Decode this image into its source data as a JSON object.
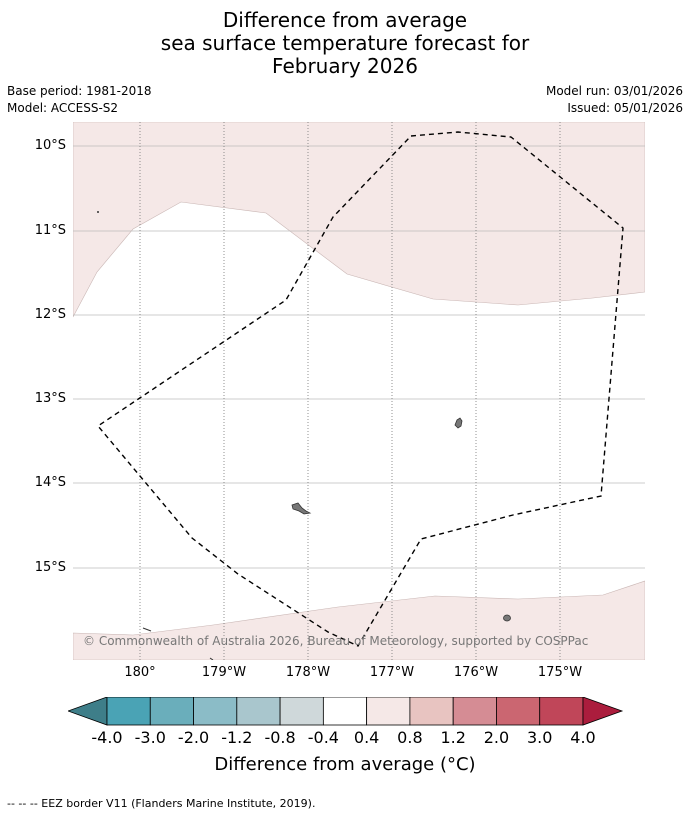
{
  "title": {
    "line1": "Difference from average",
    "line2": "sea surface temperature forecast for",
    "line3": "February 2026"
  },
  "meta": {
    "base_period": "Base period: 1981-2018",
    "model": "Model: ACCESS-S2",
    "model_run": "Model run: 03/01/2026",
    "issued": "Issued: 05/01/2026"
  },
  "map": {
    "lat_labels": [
      "10°S",
      "11°S",
      "12°S",
      "13°S",
      "14°S",
      "15°S"
    ],
    "lon_labels": [
      "180°",
      "179°W",
      "178°W",
      "177°W",
      "176°W",
      "175°W"
    ],
    "copyright": "© Commonwealth of Australia 2026, Bureau of Meteorology, supported by COSPPac",
    "colors": {
      "warm_anomaly_fill": "#f5e8e7",
      "land": "#777777",
      "gridline": "#bbbbbb"
    }
  },
  "colorbar": {
    "ticks": [
      "-4.0",
      "-3.0",
      "-2.0",
      "-1.2",
      "-0.8",
      "-0.4",
      "0.4",
      "0.8",
      "1.2",
      "2.0",
      "3.0",
      "4.0"
    ],
    "colors": [
      "#3e7e89",
      "#4aa3b5",
      "#6aaebb",
      "#8bbcc7",
      "#a9c6cd",
      "#cfd8da",
      "#ffffff",
      "#f5e8e7",
      "#e8c4c1",
      "#d58c94",
      "#cb6671",
      "#c04659",
      "#ab1d3d"
    ],
    "label": "Difference from average (°C)"
  },
  "footer": "--  --  -- EEZ border V11 (Flanders Marine Institute, 2019)."
}
